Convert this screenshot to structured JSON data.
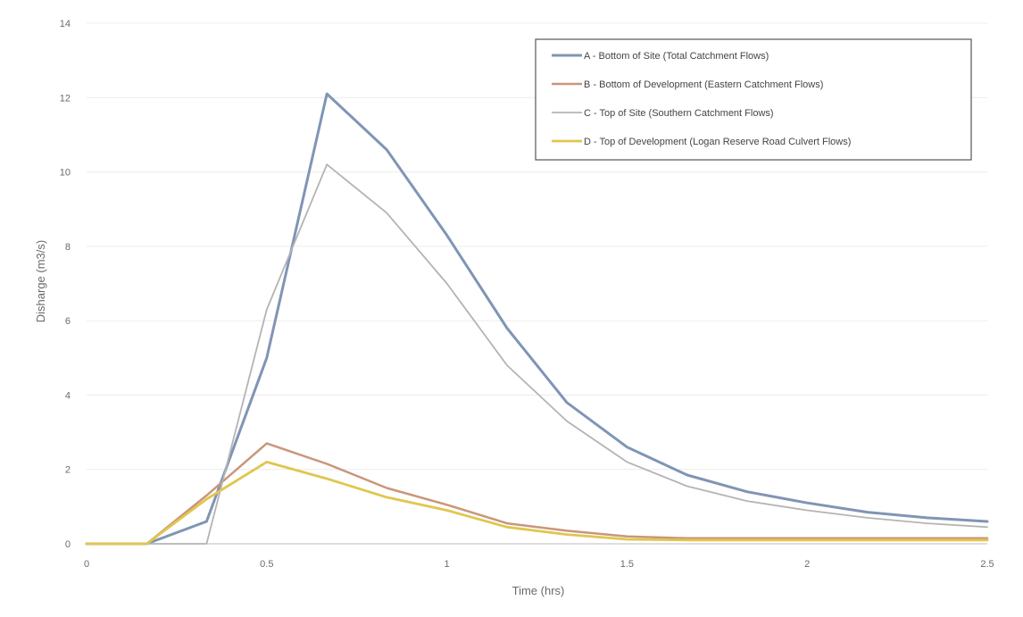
{
  "chart_data": {
    "type": "line",
    "title": "",
    "xlabel": "Time (hrs)",
    "ylabel": "Disharge (m3/s)",
    "xlim": [
      0,
      2.5
    ],
    "ylim": [
      0,
      14
    ],
    "xticks": [
      0,
      0.5,
      1,
      1.5,
      2,
      2.5
    ],
    "xtick_labels": [
      "0",
      "0.5",
      "1",
      "1.5",
      "2",
      "2.5"
    ],
    "yticks": [
      0,
      2,
      4,
      6,
      8,
      10,
      12,
      14
    ],
    "ytick_labels": [
      "0",
      "2",
      "4",
      "6",
      "8",
      "10",
      "12",
      "14"
    ],
    "grid": true,
    "legend_position": "top-right",
    "series": [
      {
        "name": "A - Bottom of Site (Total Catchment Flows)",
        "color": "#7f95b5",
        "x": [
          0,
          0.167,
          0.333,
          0.5,
          0.667,
          0.833,
          1.0,
          1.167,
          1.333,
          1.5,
          1.667,
          1.833,
          2.0,
          2.167,
          2.333,
          2.5
        ],
        "y": [
          0,
          0,
          0.6,
          5.0,
          12.1,
          10.6,
          8.3,
          5.8,
          3.8,
          2.6,
          1.85,
          1.4,
          1.1,
          0.85,
          0.7,
          0.6
        ]
      },
      {
        "name": "B - Bottom of Development (Eastern Catchment Flows)",
        "color": "#c9967a",
        "x": [
          0,
          0.167,
          0.333,
          0.5,
          0.667,
          0.833,
          1.0,
          1.167,
          1.333,
          1.5,
          1.667,
          1.833,
          2.0,
          2.167,
          2.333,
          2.5
        ],
        "y": [
          0,
          0,
          1.3,
          2.7,
          2.15,
          1.5,
          1.05,
          0.55,
          0.35,
          0.2,
          0.15,
          0.15,
          0.15,
          0.15,
          0.15,
          0.15
        ]
      },
      {
        "name": "C - Top of Site (Southern Catchment Flows)",
        "color": "#b4b4b4",
        "x": [
          0,
          0.167,
          0.333,
          0.5,
          0.667,
          0.833,
          1.0,
          1.167,
          1.333,
          1.5,
          1.667,
          1.833,
          2.0,
          2.167,
          2.333,
          2.5
        ],
        "y": [
          0,
          0,
          0,
          6.3,
          10.2,
          8.9,
          7.0,
          4.8,
          3.3,
          2.2,
          1.55,
          1.15,
          0.9,
          0.7,
          0.55,
          0.45
        ]
      },
      {
        "name": "D - Top of Development (Logan Reserve Road Culvert Flows)",
        "color": "#e0c64f",
        "x": [
          0,
          0.167,
          0.333,
          0.5,
          0.667,
          0.833,
          1.0,
          1.167,
          1.333,
          1.5,
          1.667,
          1.833,
          2.0,
          2.167,
          2.333,
          2.5
        ],
        "y": [
          0,
          0,
          1.2,
          2.2,
          1.75,
          1.25,
          0.9,
          0.45,
          0.25,
          0.12,
          0.1,
          0.1,
          0.1,
          0.1,
          0.1,
          0.1
        ]
      }
    ]
  }
}
